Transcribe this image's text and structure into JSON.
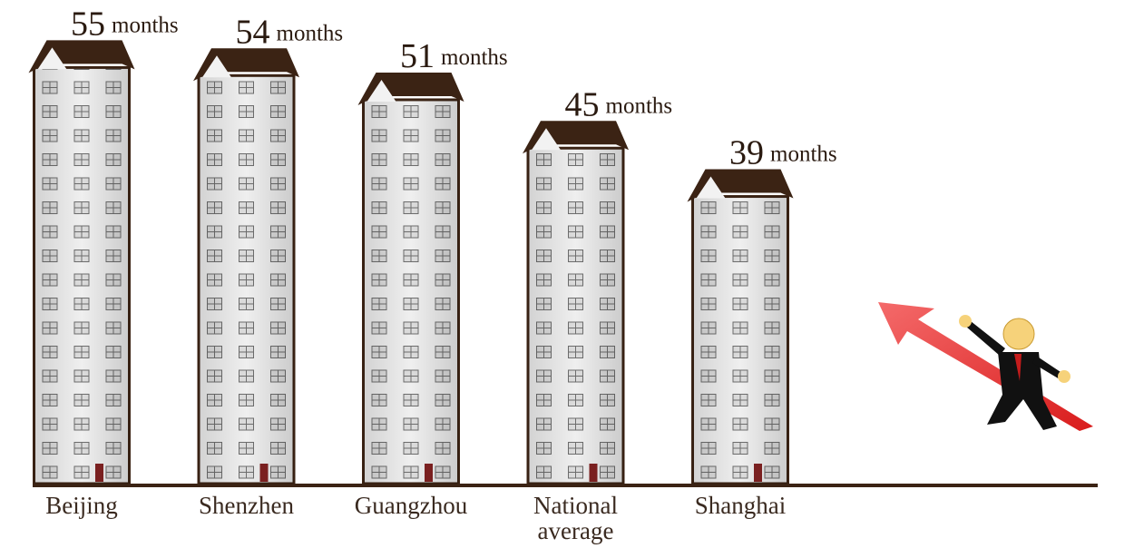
{
  "chart_data": {
    "type": "bar",
    "categories": [
      "Beijing",
      "Shenzhen",
      "Guangzhou",
      "National average",
      "Shanghai"
    ],
    "values": [
      55,
      54,
      51,
      45,
      39
    ],
    "unit": "months",
    "ylim": [
      0,
      60
    ],
    "color": "#3b2314"
  }
}
